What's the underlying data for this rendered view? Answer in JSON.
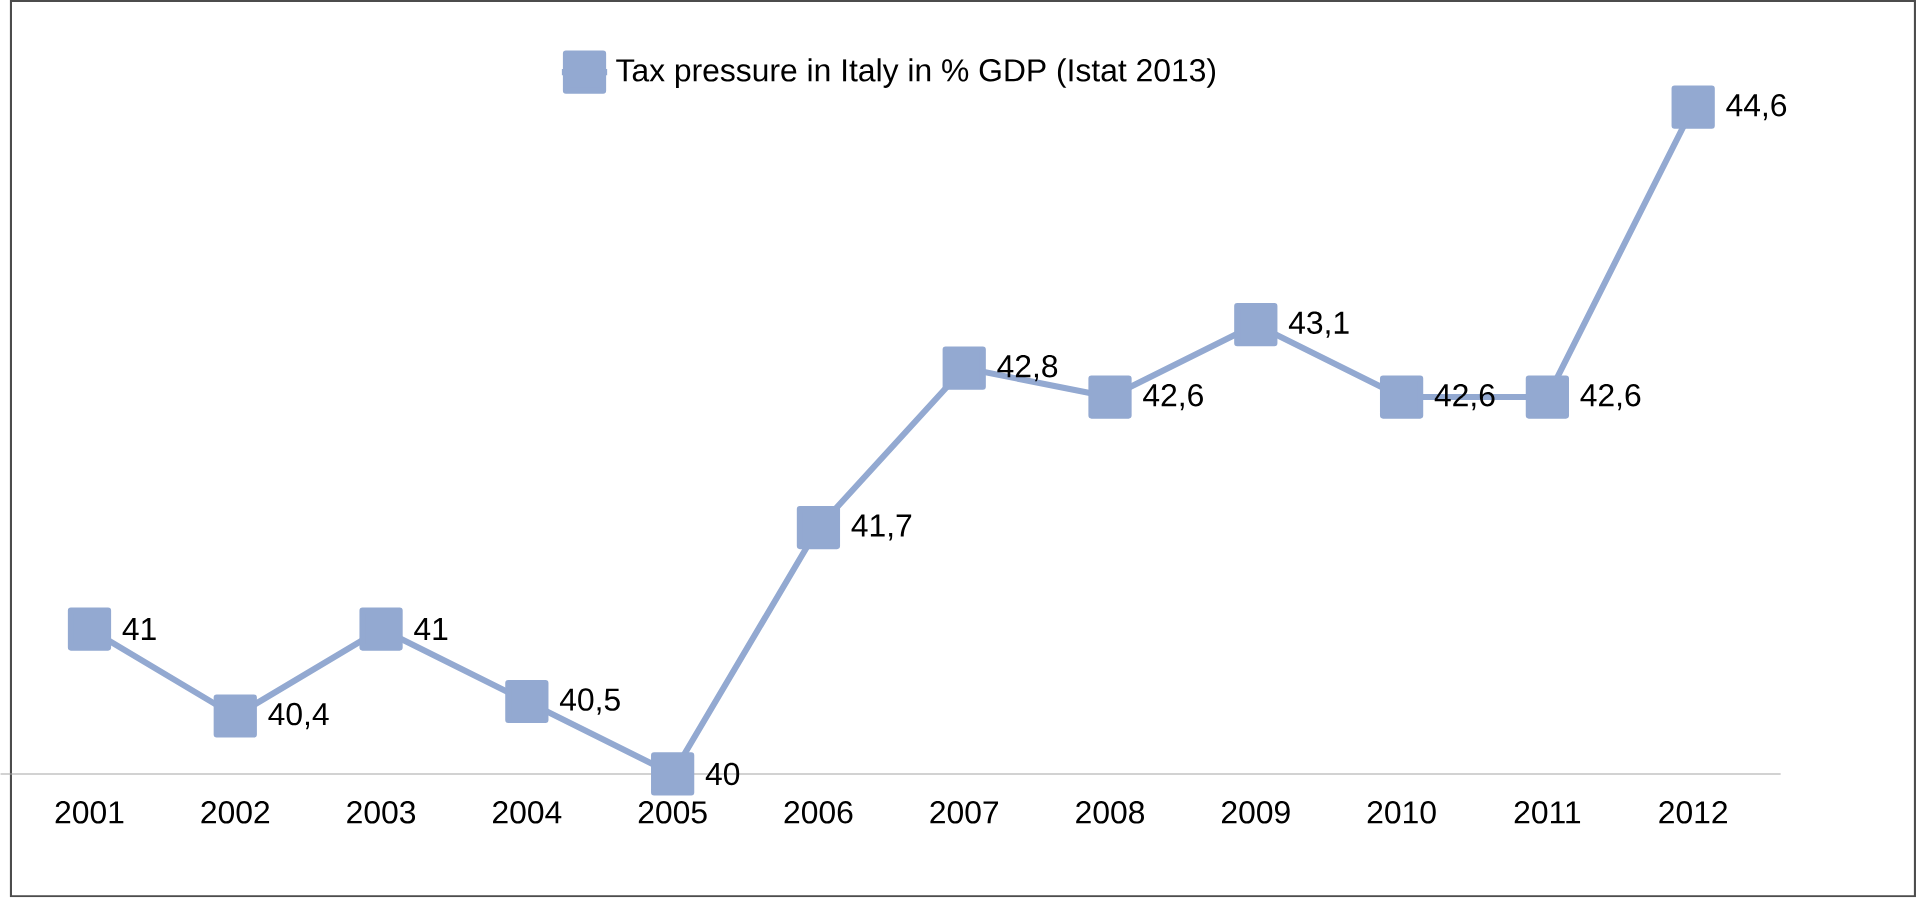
{
  "chart_data": {
    "type": "line",
    "categories": [
      "2001",
      "2002",
      "2003",
      "2004",
      "2005",
      "2006",
      "2007",
      "2008",
      "2009",
      "2010",
      "2011",
      "2012"
    ],
    "series": [
      {
        "name": "Tax pressure in Italy in % GDP (Istat 2013)",
        "color": "#93a9d1",
        "values": [
          41,
          40.4,
          41,
          40.5,
          40,
          41.7,
          42.8,
          42.6,
          43.1,
          42.6,
          42.6,
          44.6
        ],
        "value_labels": [
          "41",
          "40,4",
          "41",
          "40,5",
          "40",
          "41,7",
          "42,8",
          "42,6",
          "43,1",
          "42,6",
          "42,6",
          "44,6"
        ]
      }
    ],
    "marker": "square",
    "line_style": "solid",
    "legend": "top",
    "tick_labels": "x"
  }
}
